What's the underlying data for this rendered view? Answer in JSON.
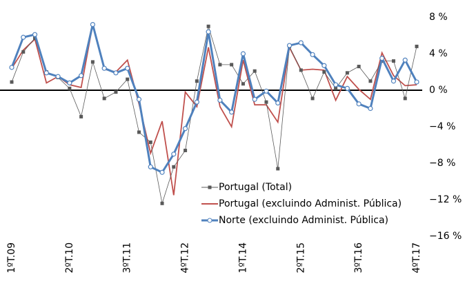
{
  "chart_data": {
    "type": "line",
    "categories": [
      "1ºT.09",
      null,
      null,
      null,
      null,
      "2ºT.10",
      null,
      null,
      null,
      null,
      "3ºT.11",
      null,
      null,
      null,
      null,
      "4ºT.12",
      null,
      null,
      null,
      null,
      "1ºT.14",
      null,
      null,
      null,
      null,
      "2ºT.15",
      null,
      null,
      null,
      null,
      "3ºT.16",
      null,
      null,
      null,
      null,
      "4ºT.17"
    ],
    "series": [
      {
        "name": "Portugal (Total)",
        "color": "#595959",
        "marker": "square",
        "values": [
          0.9,
          4.2,
          5.7,
          2.0,
          1.4,
          0.2,
          -2.9,
          3.1,
          -0.9,
          -0.2,
          1.2,
          -4.6,
          -5.7,
          -12.4,
          -8.4,
          -6.6,
          1.0,
          7.0,
          2.8,
          2.8,
          0.7,
          2.1,
          -1.3,
          -8.6,
          4.8,
          2.2,
          -0.9,
          2.0,
          0.2,
          1.9,
          2.6,
          1.0,
          3.2,
          3.2,
          -0.9,
          4.8
        ]
      },
      {
        "name": "Portugal (excluindo Administ. Pública)",
        "color": "#c0504d",
        "marker": "none",
        "values": [
          2.4,
          4.4,
          5.6,
          0.8,
          1.5,
          0.6,
          0.3,
          7.2,
          2.3,
          2.0,
          3.3,
          -1.5,
          -6.9,
          -3.4,
          -11.5,
          -0.2,
          -1.8,
          4.7,
          -1.8,
          -4.0,
          3.3,
          -1.6,
          -1.6,
          -3.5,
          4.7,
          2.2,
          2.3,
          2.2,
          -1.1,
          1.5,
          0.1,
          -1.0,
          4.1,
          1.6,
          0.5,
          0.6
        ]
      },
      {
        "name": "Norte (excluindo Administ. Pública)",
        "color": "#4f81bd",
        "marker": "circle",
        "values": [
          2.5,
          5.8,
          6.1,
          1.9,
          1.5,
          0.8,
          1.6,
          7.2,
          2.4,
          1.9,
          2.4,
          -1.0,
          -8.4,
          -9.0,
          -7.0,
          -4.2,
          -1.3,
          6.4,
          -1.1,
          -2.4,
          4.0,
          -1.0,
          -0.1,
          -1.4,
          4.9,
          5.2,
          3.9,
          2.7,
          0.6,
          0.2,
          -1.5,
          -2.0,
          3.5,
          1.0,
          3.3,
          0.9
        ]
      }
    ],
    "ylim": [
      -16,
      8
    ],
    "yticks": [
      {
        "value": 8,
        "label": "8 %"
      },
      {
        "value": 4,
        "label": "4 %"
      },
      {
        "value": 0,
        "label": "0 %"
      },
      {
        "value": -4,
        "label": "−4 %"
      },
      {
        "value": -8,
        "label": "−8 %"
      },
      {
        "value": -12,
        "label": "−12 %"
      },
      {
        "value": -16,
        "label": "−16 %"
      }
    ],
    "legend": "inside-bottom"
  }
}
